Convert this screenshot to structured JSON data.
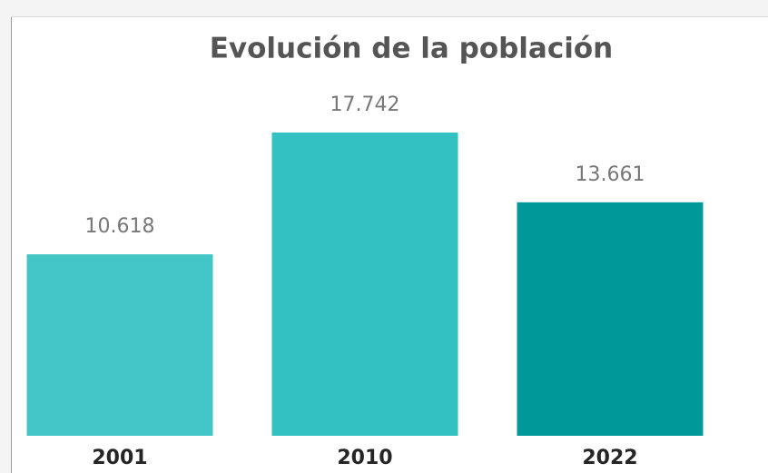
{
  "chart_data": {
    "type": "bar",
    "title": "Evolución de la población",
    "categories": [
      "2001",
      "2010",
      "2022"
    ],
    "values": [
      10618,
      17742,
      13661
    ],
    "value_labels": [
      "10.618",
      "17.742",
      "13.661"
    ],
    "colors": [
      "#45c6c6",
      "#33c1c1",
      "#009999"
    ]
  }
}
